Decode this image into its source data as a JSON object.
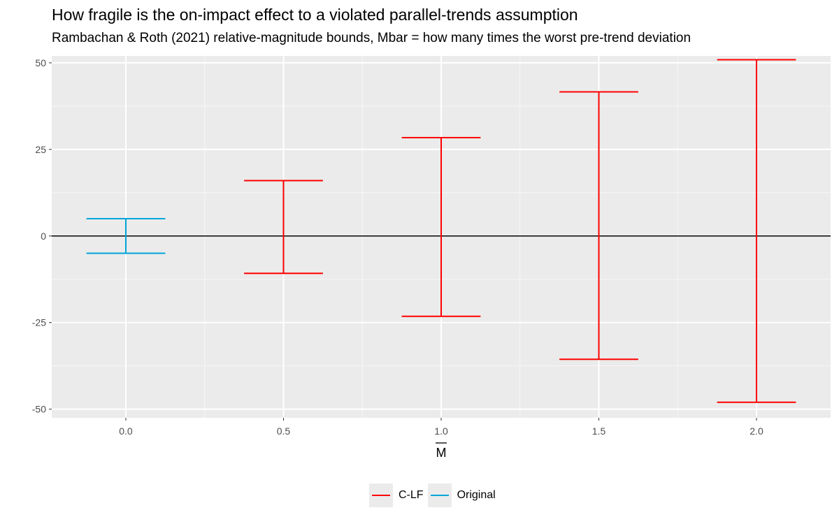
{
  "chart_data": {
    "type": "errorbar",
    "title": "How fragile is the on-impact effect to a violated parallel-trends assumption",
    "subtitle": "Rambachan & Roth (2021) relative-magnitude bounds, Mbar = how many times the worst pre-trend deviation",
    "xlabel": "M",
    "xlabel_overline": true,
    "ylabel": "",
    "xlim": [
      -0.235,
      2.235
    ],
    "ylim": [
      -52.5,
      52
    ],
    "x_ticks": [
      0.0,
      0.5,
      1.0,
      1.5,
      2.0
    ],
    "x_tick_labels": [
      "0.0",
      "0.5",
      "1.0",
      "1.5",
      "2.0"
    ],
    "y_ticks": [
      -50,
      -25,
      0,
      25,
      50
    ],
    "y_tick_labels": [
      "-50",
      "-25",
      "0",
      "25",
      "50"
    ],
    "x_minor": [
      0.25,
      0.75,
      1.25,
      1.75
    ],
    "y_minor": [
      -37.5,
      -12.5,
      12.5,
      37.5
    ],
    "cap_halfwidth": 0.125,
    "hline": 0,
    "grid": true,
    "legend_position": "bottom",
    "series": [
      {
        "name": "C-LF",
        "color": "#ff0000",
        "points": [
          {
            "x": 0.5,
            "lb": -10.8,
            "ub": 16.0
          },
          {
            "x": 1.0,
            "lb": -23.2,
            "ub": 28.4
          },
          {
            "x": 1.5,
            "lb": -35.6,
            "ub": 41.6
          },
          {
            "x": 2.0,
            "lb": -48.0,
            "ub": 50.9
          }
        ]
      },
      {
        "name": "Original",
        "color": "#00a5dc",
        "points": [
          {
            "x": 0.0,
            "lb": -5.0,
            "ub": 5.0
          }
        ]
      }
    ]
  }
}
